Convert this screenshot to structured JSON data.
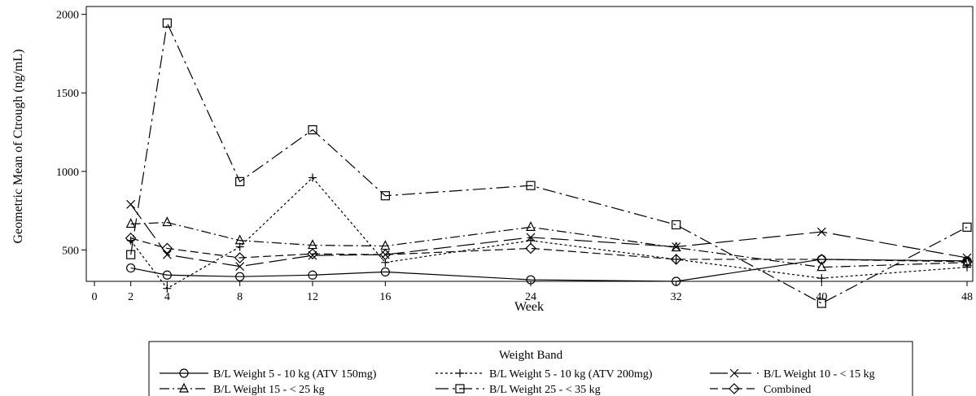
{
  "chart_data": {
    "type": "line",
    "title": "",
    "xlabel": "Week",
    "ylabel": "Geometric Mean of Ctrough (ng/mL)",
    "x": [
      2,
      4,
      8,
      12,
      16,
      24,
      32,
      40,
      48
    ],
    "xticks": [
      0,
      2,
      4,
      8,
      12,
      16,
      24,
      32,
      40,
      48
    ],
    "xlim": [
      0,
      48
    ],
    "yticks": [
      500,
      1000,
      1500,
      2000
    ],
    "ylim": [
      300,
      2050
    ],
    "grid": false,
    "legend": {
      "title": "Weight Band",
      "placement": "bottom"
    },
    "series": [
      {
        "name": "B/L Weight 5 - 10 kg (ATV 150mg)",
        "marker": "circle",
        "dash": "solid",
        "values": [
          385,
          340,
          330,
          340,
          360,
          310,
          300,
          440,
          430
        ]
      },
      {
        "name": "B/L Weight 5 - 10 kg (ATV 200mg)",
        "marker": "plus",
        "dash": "dotted",
        "values": [
          560,
          255,
          520,
          960,
          420,
          560,
          440,
          320,
          390
        ]
      },
      {
        "name": "B/L Weight 10 - < 15 kg",
        "marker": "x",
        "dash": "longdash",
        "values": [
          790,
          470,
          395,
          465,
          470,
          580,
          520,
          615,
          450
        ]
      },
      {
        "name": "B/L Weight 15 - < 25 kg",
        "marker": "triangle",
        "dash": "dashdot",
        "values": [
          665,
          675,
          560,
          530,
          525,
          645,
          515,
          390,
          420
        ]
      },
      {
        "name": "B/L Weight 25 - < 35 kg",
        "marker": "square",
        "dash": "dashdot2",
        "values": [
          470,
          1945,
          935,
          1265,
          845,
          910,
          660,
          160,
          645
        ]
      },
      {
        "name": "Combined",
        "marker": "diamond",
        "dash": "dash",
        "values": [
          575,
          510,
          450,
          475,
          470,
          510,
          440,
          440,
          425
        ]
      }
    ]
  }
}
